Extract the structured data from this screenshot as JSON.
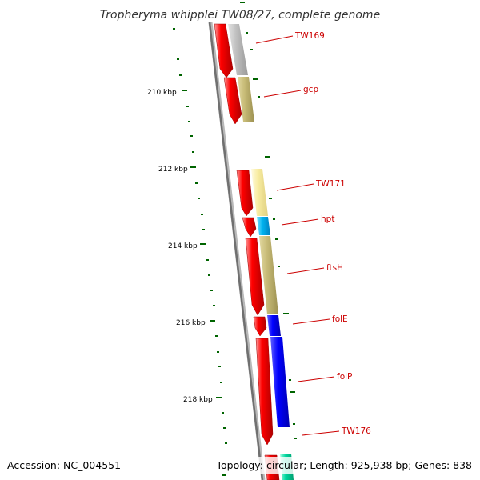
{
  "map": {
    "title": "Tropheryma whipplei TW08/27, complete genome",
    "accession": "Accession: NC_004551",
    "topology_summary": "Topology: circular; Length: 925,938 bp; Genes: 838",
    "ticks": [
      {
        "label": "210 kbp"
      },
      {
        "label": "212 kbp"
      },
      {
        "label": "214 kbp"
      },
      {
        "label": "216 kbp"
      },
      {
        "label": "218 kbp"
      }
    ],
    "genes": [
      {
        "label": "TW169"
      },
      {
        "label": "gcp"
      },
      {
        "label": "TW171"
      },
      {
        "label": "hpt"
      },
      {
        "label": "ftsH"
      },
      {
        "label": "folE"
      },
      {
        "label": "folP"
      },
      {
        "label": "TW176"
      }
    ],
    "colors": {
      "cds": "#ff0000",
      "unknown_function": "#c0c0c0",
      "metabolism": "#c8bc78",
      "hypothetical": "#f8eca0",
      "nucleotide_transport": "#00b4f0",
      "coenzyme": "#0000ff",
      "other": "#00d8a0",
      "gc_skew": "#006400",
      "label_line": "#cc0000"
    }
  }
}
